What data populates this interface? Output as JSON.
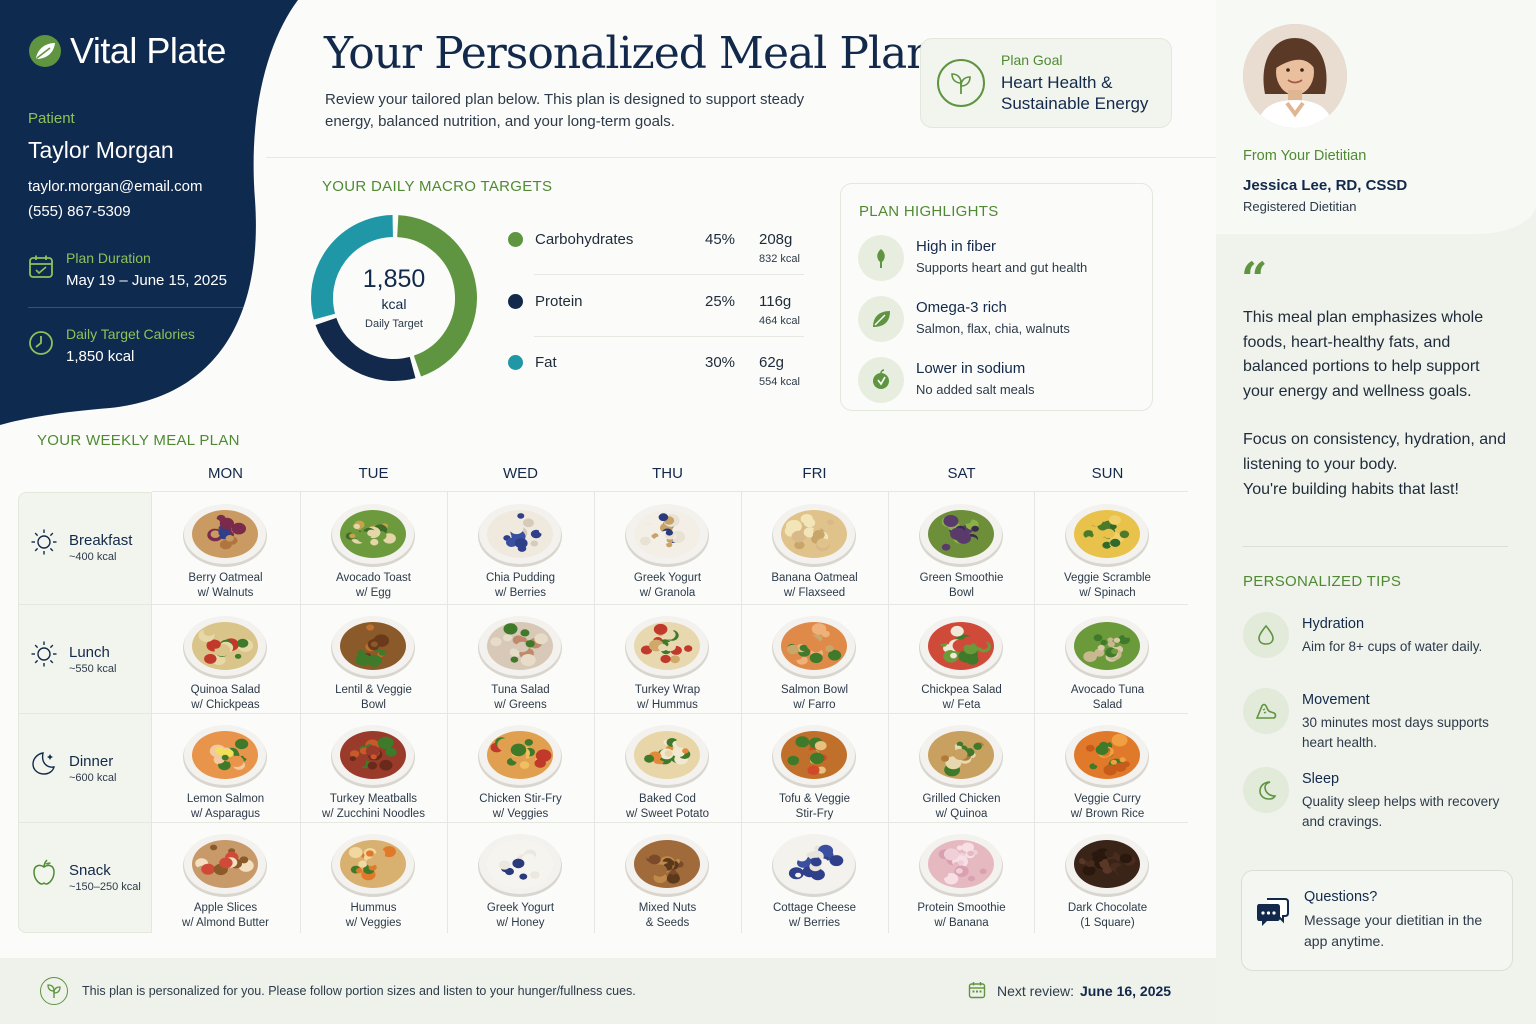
{
  "brand": {
    "name": "Vital Plate"
  },
  "patient": {
    "label": "Patient",
    "name": "Taylor Morgan",
    "email": "taylor.morgan@email.com",
    "phone": "(555) 867-5309",
    "duration_label": "Plan Duration",
    "duration_value": "May 19 – June 15, 2025",
    "calories_label": "Daily Target Calories",
    "calories_value": "1,850 kcal"
  },
  "header": {
    "title": "Your Personalized Meal Plan",
    "desc": "Review your tailored plan below. This plan is designed to support steady energy, balanced nutrition, and your long-term goals.",
    "goal_label": "Plan Goal",
    "goal_value": "Heart Health & Sustainable Energy"
  },
  "macros": {
    "title": "YOUR DAILY MACRO TARGETS",
    "kcal_value": "1,850",
    "kcal_unit": "kcal",
    "kcal_label": "Daily Target",
    "items": [
      {
        "name": "Carbohydrates",
        "pct": "45%",
        "grams": "208g",
        "kcal": "832 kcal",
        "percent": 45,
        "color": "#5f9440"
      },
      {
        "name": "Protein",
        "pct": "25%",
        "grams": "116g",
        "kcal": "464 kcal",
        "percent": 25,
        "color": "#13294b"
      },
      {
        "name": "Fat",
        "pct": "30%",
        "grams": "62g",
        "kcal": "554 kcal",
        "percent": 30,
        "color": "#1f97a7"
      }
    ]
  },
  "highlights": {
    "title": "PLAN HIGHLIGHTS",
    "items": [
      {
        "title": "High in fiber",
        "sub": "Supports heart and gut health",
        "icon": "leaf-icon"
      },
      {
        "title": "Omega-3 rich",
        "sub": "Salmon, flax, chia, walnuts",
        "icon": "omega-leaf-icon"
      },
      {
        "title": "Lower in sodium",
        "sub": "No added salt meals",
        "icon": "low-sodium-icon"
      }
    ]
  },
  "weekly": {
    "title": "YOUR WEEKLY MEAL PLAN",
    "days": [
      "MON",
      "TUE",
      "WED",
      "THU",
      "FRI",
      "SAT",
      "SUN"
    ],
    "rows": [
      {
        "name": "Breakfast",
        "kcal": "~400 kcal",
        "icon": "sun-icon",
        "meals": [
          {
            "l1": "Berry Oatmeal",
            "l2": "w/ Walnuts"
          },
          {
            "l1": "Avocado Toast",
            "l2": "w/ Egg"
          },
          {
            "l1": "Chia Pudding",
            "l2": "w/ Berries"
          },
          {
            "l1": "Greek Yogurt",
            "l2": "w/ Granola"
          },
          {
            "l1": "Banana Oatmeal",
            "l2": "w/ Flaxseed"
          },
          {
            "l1": "Green Smoothie",
            "l2": "Bowl"
          },
          {
            "l1": "Veggie Scramble",
            "l2": "w/ Spinach"
          }
        ]
      },
      {
        "name": "Lunch",
        "kcal": "~550 kcal",
        "icon": "sun-icon",
        "meals": [
          {
            "l1": "Quinoa Salad",
            "l2": "w/ Chickpeas"
          },
          {
            "l1": "Lentil & Veggie",
            "l2": "Bowl"
          },
          {
            "l1": "Tuna Salad",
            "l2": "w/ Greens"
          },
          {
            "l1": "Turkey Wrap",
            "l2": "w/ Hummus"
          },
          {
            "l1": "Salmon Bowl",
            "l2": "w/ Farro"
          },
          {
            "l1": "Chickpea Salad",
            "l2": "w/ Feta"
          },
          {
            "l1": "Avocado Tuna",
            "l2": "Salad"
          }
        ]
      },
      {
        "name": "Dinner",
        "kcal": "~600 kcal",
        "icon": "moon-stars-icon",
        "meals": [
          {
            "l1": "Lemon Salmon",
            "l2": "w/ Asparagus"
          },
          {
            "l1": "Turkey Meatballs",
            "l2": "w/ Zucchini Noodles"
          },
          {
            "l1": "Chicken Stir-Fry",
            "l2": "w/ Veggies"
          },
          {
            "l1": "Baked Cod",
            "l2": "w/ Sweet Potato"
          },
          {
            "l1": "Tofu & Veggie",
            "l2": "Stir-Fry"
          },
          {
            "l1": "Grilled Chicken",
            "l2": "w/ Quinoa"
          },
          {
            "l1": "Veggie Curry",
            "l2": "w/ Brown Rice"
          }
        ]
      },
      {
        "name": "Snack",
        "kcal": "~150–250 kcal",
        "icon": "apple-icon",
        "meals": [
          {
            "l1": "Apple Slices",
            "l2": "w/ Almond Butter"
          },
          {
            "l1": "Hummus",
            "l2": "w/ Veggies"
          },
          {
            "l1": "Greek Yogurt",
            "l2": "w/ Honey"
          },
          {
            "l1": "Mixed Nuts",
            "l2": "& Seeds"
          },
          {
            "l1": "Cottage Cheese",
            "l2": "w/ Berries"
          },
          {
            "l1": "Protein Smoothie",
            "l2": "w/ Banana"
          },
          {
            "l1": "Dark Chocolate",
            "l2": "(1 Square)"
          }
        ]
      }
    ]
  },
  "footer": {
    "note": "This plan is personalized for you. Please follow portion sizes and listen to your hunger/fullness cues.",
    "review_label": "Next review:",
    "review_date": "June 16, 2025"
  },
  "dietitian": {
    "from_label": "From Your Dietitian",
    "name": "Jessica Lee, RD, CSSD",
    "role": "Registered Dietitian",
    "quote_mark": "“",
    "quote": "This meal plan emphasizes whole foods, heart-healthy fats, and balanced portions to help support your energy and wellness goals.",
    "quote2": "Focus on consistency, hydration, and listening to your body.",
    "quote3": "You're building habits that last!"
  },
  "tips": {
    "title": "PERSONALIZED TIPS",
    "items": [
      {
        "title": "Hydration",
        "sub": "Aim for 8+ cups of water daily.",
        "icon": "water-drop-icon"
      },
      {
        "title": "Movement",
        "sub": "30 minutes most days supports heart health.",
        "icon": "shoe-icon"
      },
      {
        "title": "Sleep",
        "sub": "Quality sleep helps with recovery and cravings.",
        "icon": "moon-icon"
      }
    ]
  },
  "questions": {
    "title": "Questions?",
    "sub": "Message your dietitian in the app anytime."
  }
}
